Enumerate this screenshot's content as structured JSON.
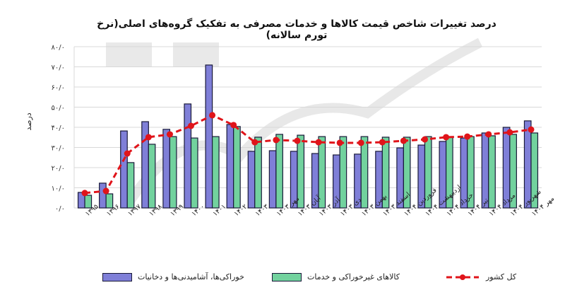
{
  "chart_data": {
    "type": "bar",
    "title": "درصد تغییرات شاخص قیمت کالاها و خدمات مصرفی به تفکیک گروه‌های اصلی(نرخ تورم سالانه)",
    "xlabel": "",
    "ylabel": "درصد",
    "ylim": [
      0,
      80
    ],
    "yticks": [
      "۰/۰",
      "۱۰/۰",
      "۲۰/۰",
      "۳۰/۰",
      "۴۰/۰",
      "۵۰/۰",
      "۶۰/۰",
      "۷۰/۰",
      "۸۰/۰"
    ],
    "ytick_values": [
      0,
      10,
      20,
      30,
      40,
      50,
      60,
      70,
      80
    ],
    "grid": true,
    "legend_position": "bottom",
    "categories": [
      "۱۳۹۵",
      "۱۳۹۶",
      "۱۳۹۷",
      "۱۳۹۸",
      "۱۳۹۹",
      "۱۴۰۰",
      "۱۴۰۱",
      "۱۴۰۲",
      "۱۴۰۳",
      "مهر ۱۴۰۳",
      "آبان ۱۴۰۳",
      "آذر ۱۴۰۳",
      "دی ۱۴۰۳",
      "بهمن ۱۴۰۳",
      "اسفند ۱۴۰۳",
      "فروردین ۱۴۰۴",
      "اردیبهشت ۱۴۰۴",
      "خرداد ۱۴۰۴",
      "تیر ۱۴۰۴",
      "مرداد ۱۴۰۴",
      "شهریور ۱۴۰۴",
      "مهر ۱۴۰۴"
    ],
    "series": [
      {
        "name": "خوراکی‌ها، آشامیدنی‌ها و دخانیات",
        "type": "bar",
        "color": "#7f7fd8",
        "values": [
          7.7,
          12.3,
          38.2,
          42.8,
          39.0,
          51.6,
          70.9,
          41.4,
          28.1,
          28.4,
          28.1,
          27.0,
          26.3,
          26.7,
          28.1,
          29.8,
          31.2,
          33.0,
          34.7,
          37.2,
          40.0,
          43.2
        ]
      },
      {
        "name": "کالاهای غیرخوراکی و خدمات",
        "type": "bar",
        "color": "#72d29e",
        "values": [
          6.3,
          7.0,
          22.5,
          31.6,
          35.4,
          34.7,
          35.4,
          40.4,
          35.1,
          36.5,
          36.1,
          35.4,
          35.4,
          35.4,
          35.1,
          35.1,
          35.4,
          35.4,
          35.4,
          35.8,
          36.5,
          37.2
        ]
      },
      {
        "name": "کل کشور",
        "type": "line",
        "style": "dashed-with-markers",
        "color": "#e0141a",
        "values": [
          7.4,
          8.4,
          27.0,
          35.1,
          36.5,
          40.7,
          46.0,
          41.1,
          32.6,
          33.7,
          33.3,
          32.6,
          32.3,
          32.3,
          32.6,
          33.3,
          34.0,
          35.1,
          35.4,
          36.5,
          37.5,
          38.9
        ]
      }
    ]
  },
  "legend": {
    "items": [
      {
        "label": "خوراکی‌ها، آشامیدنی‌ها و دخانیات",
        "color": "#7f7fd8"
      },
      {
        "label": "کالاهای غیرخوراکی و خدمات",
        "color": "#72d29e"
      },
      {
        "label": "کل کشور",
        "color": "#e0141a"
      }
    ]
  }
}
